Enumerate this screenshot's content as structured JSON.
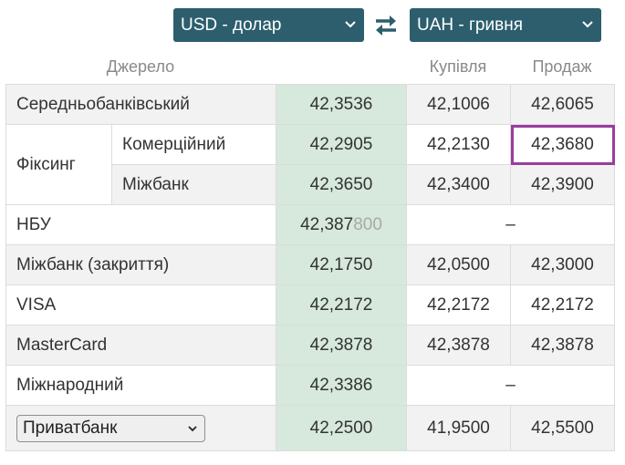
{
  "from_currency": "USD - долар",
  "to_currency": "UAH - гривня",
  "columns": {
    "source": "Джерело",
    "buy": "Купівля",
    "sell": "Продаж"
  },
  "rows": {
    "serednio": {
      "label": "Середньобанківський",
      "mid": "42,3536",
      "buy": "42,1006",
      "sell": "42,6065"
    },
    "fixing_label": "Фіксинг",
    "komertsiinyi": {
      "label": "Комерційний",
      "mid": "42,2905",
      "buy": "42,2130",
      "sell": "42,3680"
    },
    "mizhbank": {
      "label": "Міжбанк",
      "mid": "42,3650",
      "buy": "42,3400",
      "sell": "42,3900"
    },
    "nbu": {
      "label": "НБУ",
      "mid_main": "42,387",
      "mid_tail": "800",
      "dash": "–"
    },
    "mizhbank_close": {
      "label": "Міжбанк (закриття)",
      "mid": "42,1750",
      "buy": "42,0500",
      "sell": "42,3000"
    },
    "visa": {
      "label": "VISA",
      "mid": "42,2172",
      "buy": "42,2172",
      "sell": "42,2172"
    },
    "mastercard": {
      "label": "MasterCard",
      "mid": "42,3878",
      "buy": "42,3878",
      "sell": "42,3878"
    },
    "mizhnarodnyi": {
      "label": "Міжнародний",
      "mid": "42,3386",
      "dash": "–"
    },
    "privatbank": {
      "selected": "Приватбанк",
      "mid": "42,2500",
      "buy": "41,9500",
      "sell": "42,5500"
    }
  },
  "colors": {
    "accent": "#2d5e6e",
    "mid_column": "#d6e9dc",
    "highlight": "#993d9c"
  },
  "icons": {
    "swap": "swap-arrows-icon",
    "dropdown": "chevron-down-icon"
  }
}
